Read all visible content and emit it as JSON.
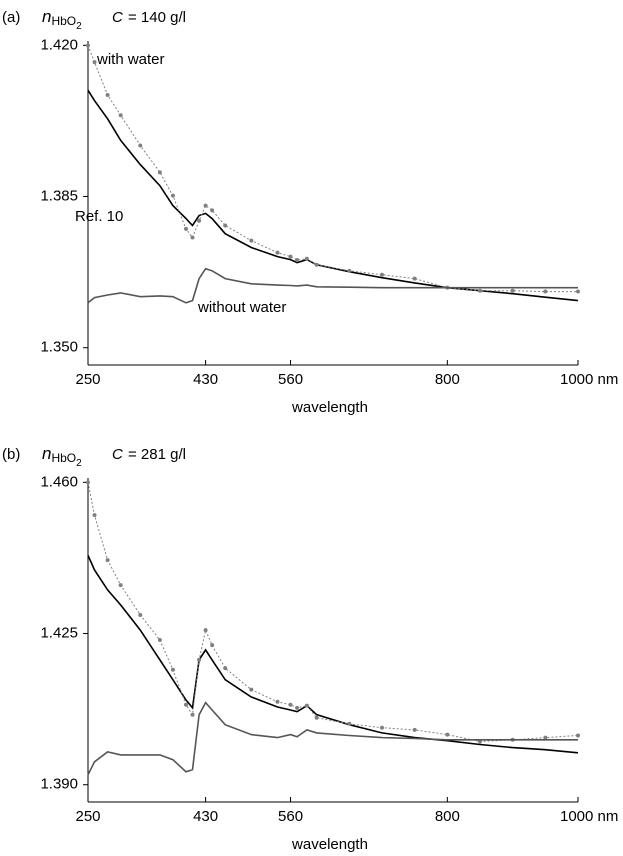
{
  "chart_data": [
    {
      "type": "line",
      "panel_label": "(a)",
      "y_label": "n",
      "y_label_subscript": "HbO",
      "y_label_subscript_index": "2",
      "concentration_symbol": "C",
      "concentration": "= 140 g/l",
      "x_label": "wavelength",
      "x": [
        250,
        260,
        280,
        300,
        330,
        360,
        380,
        400,
        410,
        420,
        430,
        440,
        460,
        500,
        540,
        560,
        570,
        585,
        600,
        650,
        700,
        750,
        800,
        850,
        900,
        950,
        1000
      ],
      "xlim": [
        250,
        1000
      ],
      "xticks": [
        250,
        430,
        560,
        800,
        {
          "value": 1000,
          "label": "1000 nm"
        }
      ],
      "ylim": [
        1.346,
        1.421
      ],
      "yticks": [
        {
          "value": 1.35,
          "label": "1.350"
        },
        1.385,
        {
          "value": 1.42,
          "label": "1.420"
        }
      ],
      "series": [
        {
          "name": "with water",
          "color": "#000000",
          "values": [
            1.4096,
            1.4072,
            1.403,
            1.398,
            1.3924,
            1.3875,
            1.3829,
            1.3799,
            1.3783,
            1.3806,
            1.3811,
            1.3799,
            1.3764,
            1.3732,
            1.3711,
            1.3704,
            1.3697,
            1.3704,
            1.3692,
            1.3676,
            1.3662,
            1.365,
            1.3639,
            1.3632,
            1.3625,
            1.3617,
            1.3609
          ]
        },
        {
          "name": "Ref. 10",
          "color": "#808080",
          "values": [
            1.42,
            1.4161,
            1.4085,
            1.4038,
            1.3968,
            1.3906,
            1.3852,
            1.3775,
            1.3755,
            1.3794,
            1.3829,
            1.3818,
            1.3783,
            1.3748,
            1.372,
            1.3711,
            1.3703,
            1.3706,
            1.3692,
            1.3678,
            1.3669,
            1.366,
            1.3639,
            1.3632,
            1.3632,
            1.363,
            1.363
          ]
        },
        {
          "name": "without water",
          "color": "#555555",
          "values": [
            1.3604,
            1.3616,
            1.3622,
            1.3627,
            1.3618,
            1.362,
            1.3618,
            1.3604,
            1.3609,
            1.366,
            1.3683,
            1.3678,
            1.366,
            1.3648,
            1.3645,
            1.3644,
            1.3643,
            1.3645,
            1.3641,
            1.364,
            1.3639,
            1.3639,
            1.3639,
            1.3639,
            1.3639,
            1.3639,
            1.3639
          ]
        }
      ]
    },
    {
      "type": "line",
      "panel_label": "(b)",
      "y_label": "n",
      "y_label_subscript": "HbO",
      "y_label_subscript_index": "2",
      "concentration_symbol": "C",
      "concentration": "= 281 g/l",
      "x_label": "wavelength",
      "x": [
        250,
        260,
        280,
        300,
        330,
        360,
        380,
        400,
        410,
        420,
        430,
        440,
        460,
        500,
        540,
        560,
        570,
        585,
        600,
        650,
        700,
        750,
        800,
        850,
        900,
        950,
        1000
      ],
      "xlim": [
        250,
        1000
      ],
      "xticks": [
        250,
        430,
        560,
        800,
        {
          "value": 1000,
          "label": "1000 nm"
        }
      ],
      "ylim": [
        1.386,
        1.461
      ],
      "yticks": [
        {
          "value": 1.39,
          "label": "1.390"
        },
        1.425,
        {
          "value": 1.46,
          "label": "1.460"
        }
      ],
      "series": [
        {
          "color": "#000000",
          "values": [
            1.4431,
            1.4397,
            1.4351,
            1.4316,
            1.4258,
            1.4189,
            1.4143,
            1.4096,
            1.4078,
            1.4189,
            1.4212,
            1.4189,
            1.4143,
            1.4103,
            1.408,
            1.4073,
            1.4069,
            1.4083,
            1.4062,
            1.4039,
            1.402,
            1.4009,
            1.4002,
            1.3993,
            1.3986,
            1.3981,
            1.3974
          ]
        },
        {
          "color": "#808080",
          "values": [
            1.46,
            1.4524,
            1.442,
            1.4362,
            1.4293,
            1.4235,
            1.4166,
            1.4085,
            1.4062,
            1.4189,
            1.4258,
            1.4223,
            1.417,
            1.412,
            1.4092,
            1.4085,
            1.4078,
            1.4083,
            1.4055,
            1.4041,
            1.4032,
            1.4027,
            1.4016,
            1.4,
            1.4004,
            1.4009,
            1.4014
          ]
        },
        {
          "color": "#555555",
          "values": [
            1.3923,
            1.3953,
            1.3976,
            1.3969,
            1.3969,
            1.3969,
            1.3958,
            1.393,
            1.3935,
            1.4062,
            1.409,
            1.4073,
            1.4039,
            1.4016,
            1.4009,
            1.4016,
            1.4011,
            1.4027,
            1.402,
            1.4014,
            1.4009,
            1.4007,
            1.4004,
            1.4004,
            1.4004,
            1.4004,
            1.4004
          ]
        }
      ]
    }
  ]
}
